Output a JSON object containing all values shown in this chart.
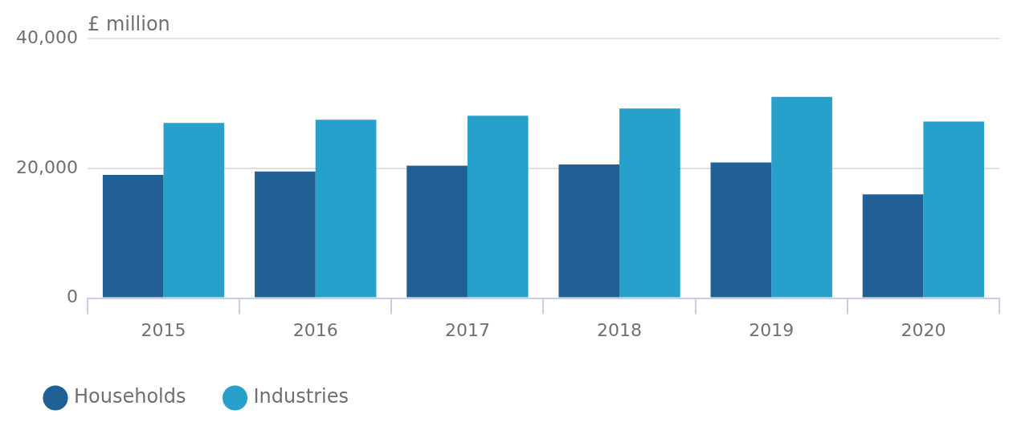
{
  "chart_data": {
    "type": "bar",
    "ylabel": "£ million",
    "categories": [
      "2015",
      "2016",
      "2017",
      "2018",
      "2019",
      "2020"
    ],
    "series": [
      {
        "name": "Households",
        "color": "#206095",
        "values": [
          19000,
          19500,
          20400,
          20600,
          20900,
          16000
        ]
      },
      {
        "name": "Industries",
        "color": "#27a0cc",
        "values": [
          27000,
          27500,
          28100,
          29200,
          31000,
          27200
        ]
      }
    ],
    "ylim": [
      0,
      40000
    ],
    "yticks": [
      0,
      {
        "value": 20000,
        "label": "20,000"
      },
      {
        "value": 40000,
        "label": "40,000"
      }
    ],
    "grid": "y",
    "legend": "bottom left"
  }
}
